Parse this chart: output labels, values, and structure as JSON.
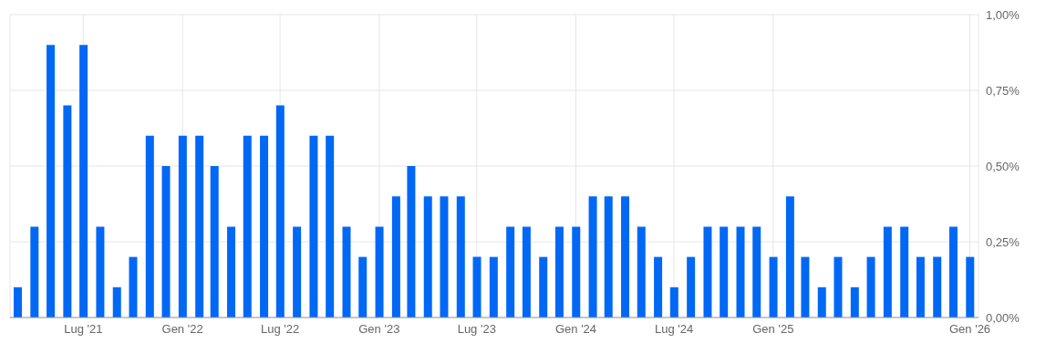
{
  "chart_data": {
    "type": "bar",
    "x": [
      "2021-03",
      "2021-04",
      "2021-05",
      "2021-06",
      "2021-07",
      "2021-08",
      "2021-09",
      "2021-10",
      "2021-11",
      "2021-12",
      "2022-01",
      "2022-02",
      "2022-03",
      "2022-04",
      "2022-05",
      "2022-06",
      "2022-07",
      "2022-08",
      "2022-09",
      "2022-10",
      "2022-11",
      "2022-12",
      "2023-01",
      "2023-02",
      "2023-03",
      "2023-04",
      "2023-05",
      "2023-06",
      "2023-07",
      "2023-08",
      "2023-09",
      "2023-10",
      "2023-11",
      "2023-12",
      "2024-01",
      "2024-02",
      "2024-03",
      "2024-04",
      "2024-05",
      "2024-06",
      "2024-07",
      "2024-08",
      "2024-09",
      "2024-10",
      "2024-11",
      "2024-12",
      "2025-01",
      "2025-02",
      "2025-03",
      "2025-04",
      "2025-05",
      "2025-06",
      "2025-07",
      "2025-08",
      "2025-09",
      "2025-10",
      "2025-11",
      "2025-12",
      "2026-01"
    ],
    "values": [
      0.1,
      0.3,
      0.9,
      0.7,
      0.9,
      0.3,
      0.1,
      0.2,
      0.6,
      0.5,
      0.6,
      0.6,
      0.5,
      0.3,
      0.6,
      0.6,
      0.7,
      0.3,
      0.6,
      0.6,
      0.3,
      0.2,
      0.3,
      0.4,
      0.5,
      0.4,
      0.4,
      0.4,
      0.2,
      0.2,
      0.3,
      0.3,
      0.2,
      0.3,
      0.3,
      0.4,
      0.4,
      0.4,
      0.3,
      0.2,
      0.1,
      0.2,
      0.3,
      0.3,
      0.3,
      0.3,
      0.2,
      0.4,
      0.2,
      0.1,
      0.2,
      0.1,
      0.2,
      0.3,
      0.3,
      0.2,
      0.2,
      0.3,
      0.2
    ],
    "color": "#0068f5",
    "xlim": [
      "2021-02-15",
      "2026-01-17"
    ],
    "xticks": [
      {
        "value": "2021-07",
        "label": "Lug '21"
      },
      {
        "value": "2022-01",
        "label": "Gen '22"
      },
      {
        "value": "2022-07",
        "label": "Lug '22"
      },
      {
        "value": "2023-01",
        "label": "Gen '23"
      },
      {
        "value": "2023-07",
        "label": "Lug '23"
      },
      {
        "value": "2024-01",
        "label": "Gen '24"
      },
      {
        "value": "2024-07",
        "label": "Lug '24"
      },
      {
        "value": "2025-01",
        "label": "Gen '25"
      },
      {
        "value": "2026-01",
        "label": "Gen '26"
      }
    ],
    "ylim": [
      0,
      1
    ],
    "yticks": [
      {
        "value": 0,
        "label": "0,00%"
      },
      {
        "value": 0.25,
        "label": "0,25%"
      },
      {
        "value": 0.5,
        "label": "0,50%"
      },
      {
        "value": 0.75,
        "label": "0,75%"
      },
      {
        "value": 1,
        "label": "1,00%"
      }
    ],
    "grid": true
  }
}
